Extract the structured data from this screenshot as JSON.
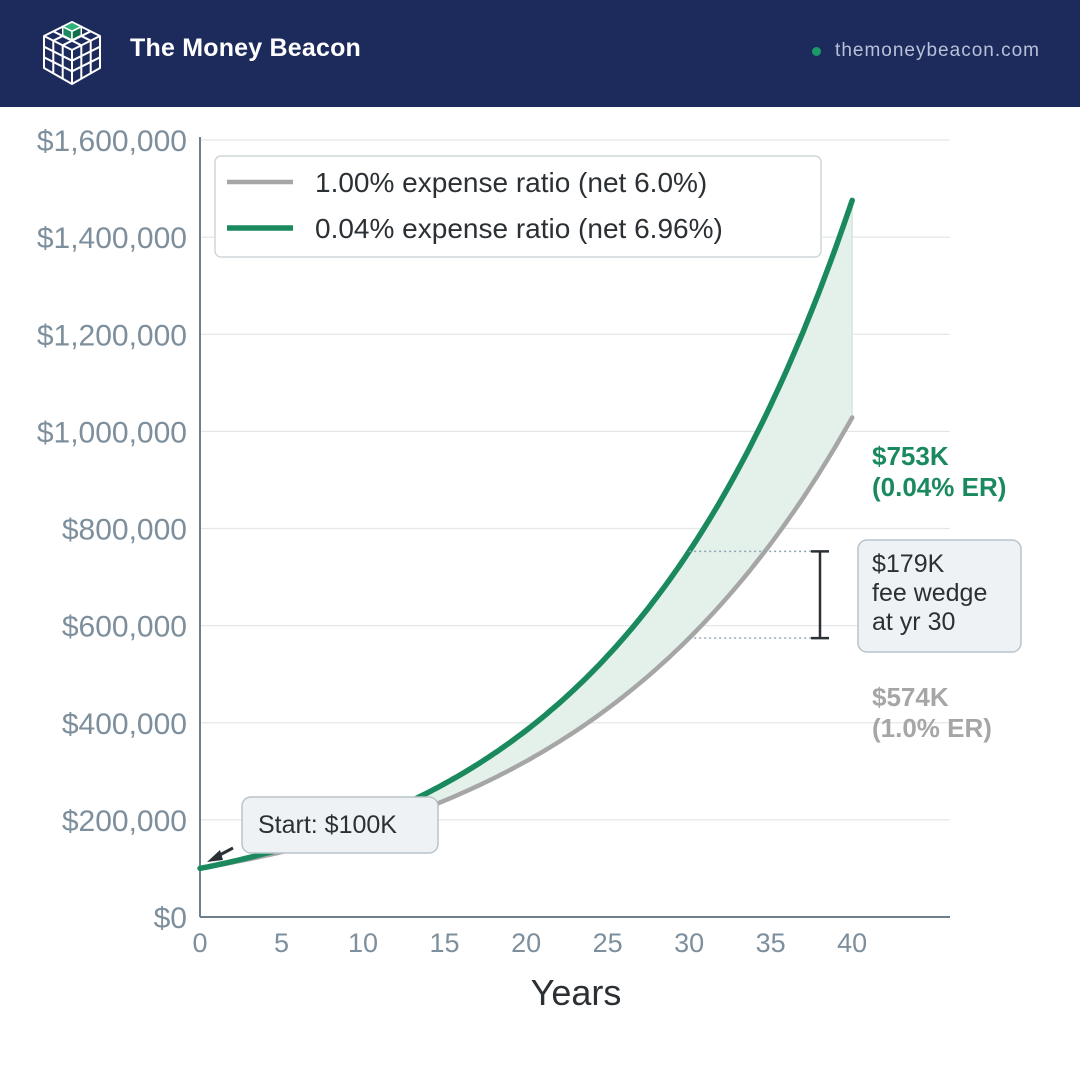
{
  "header": {
    "brand": "The Money Beacon",
    "site": "themoneybeacon.com",
    "logo_icon": "isometric-cube-grid-icon"
  },
  "colors": {
    "header_bg": "#1c2a5c",
    "green": "#1a8a5e",
    "gray": "#a6a6a6",
    "fill": "#e4f1ea",
    "axis_text": "#7d8f9c",
    "annot_box": "#eef2f4"
  },
  "chart_data": {
    "type": "line",
    "xlabel": "Years",
    "ylabel": "",
    "xlim": [
      0,
      46
    ],
    "ylim": [
      0,
      1600000
    ],
    "x_ticks": [
      0,
      5,
      10,
      15,
      20,
      25,
      30,
      35,
      40
    ],
    "y_ticks": [
      0,
      200000,
      400000,
      600000,
      800000,
      1000000,
      1200000,
      1400000,
      1600000
    ],
    "y_tick_labels": [
      "$0",
      "$200,000",
      "$400,000",
      "$600,000",
      "$800,000",
      "$1,000,000",
      "$1,200,000",
      "$1,400,000",
      "$1,600,000"
    ],
    "grid": true,
    "legend_position": "top-left",
    "fill_between": true,
    "series": [
      {
        "name": "1.00% expense ratio (net 6.0%)",
        "color": "#a6a6a6",
        "x": [
          0,
          5,
          10,
          15,
          20,
          25,
          30,
          35,
          40
        ],
        "values": [
          100000,
          133823,
          179085,
          239656,
          320714,
          429187,
          574349,
          768609,
          1028572
        ]
      },
      {
        "name": "0.04% expense ratio (net 6.96%)",
        "color": "#1a8a5e",
        "x": [
          0,
          5,
          10,
          15,
          20,
          25,
          30,
          35,
          40
        ],
        "values": [
          100000,
          139999,
          195997,
          274391,
          384140,
          537795,
          752914,
          1054078,
          1475726
        ]
      }
    ],
    "annotations": {
      "green_end_value": "$753K",
      "green_end_sub": "(0.04% ER)",
      "gray_end_value": "$574K",
      "gray_end_sub": "(1.0% ER)",
      "wedge_lines": [
        "$179K",
        "fee wedge",
        "at yr 30"
      ],
      "start_label": "Start: $100K",
      "wedge_year": 30
    }
  }
}
